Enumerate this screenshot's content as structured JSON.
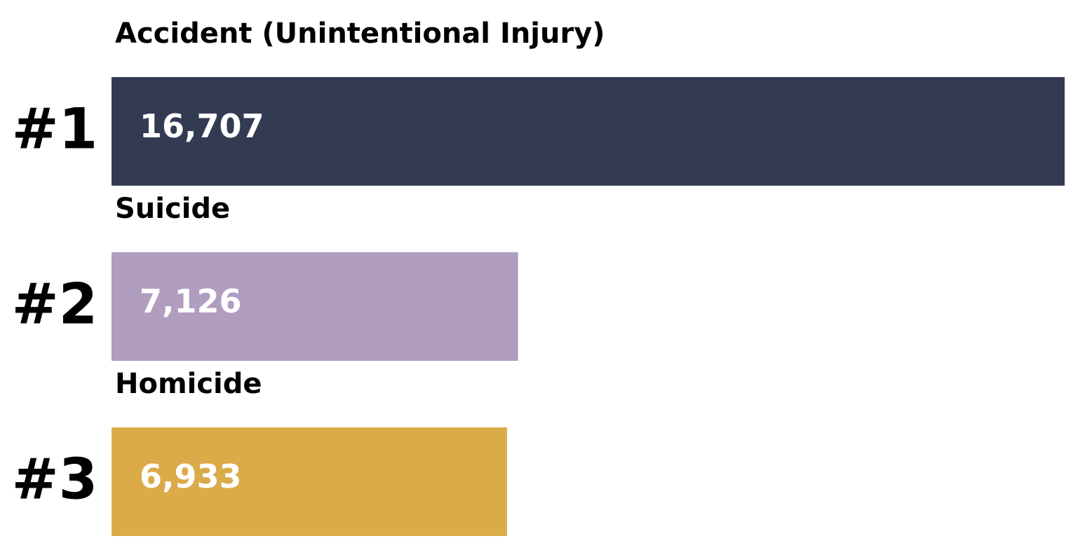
{
  "chart_data": {
    "type": "bar",
    "orientation": "horizontal",
    "categories": [
      "Accident (Unintentional Injury)",
      "Suicide",
      "Homicide"
    ],
    "ranks": [
      "#1",
      "#2",
      "#3"
    ],
    "values": [
      16707,
      7126,
      6933
    ],
    "value_labels": [
      "16,707",
      "7,126",
      "6,933"
    ],
    "colors": [
      "#323b52",
      "#b09dc0",
      "#dbab49"
    ]
  }
}
